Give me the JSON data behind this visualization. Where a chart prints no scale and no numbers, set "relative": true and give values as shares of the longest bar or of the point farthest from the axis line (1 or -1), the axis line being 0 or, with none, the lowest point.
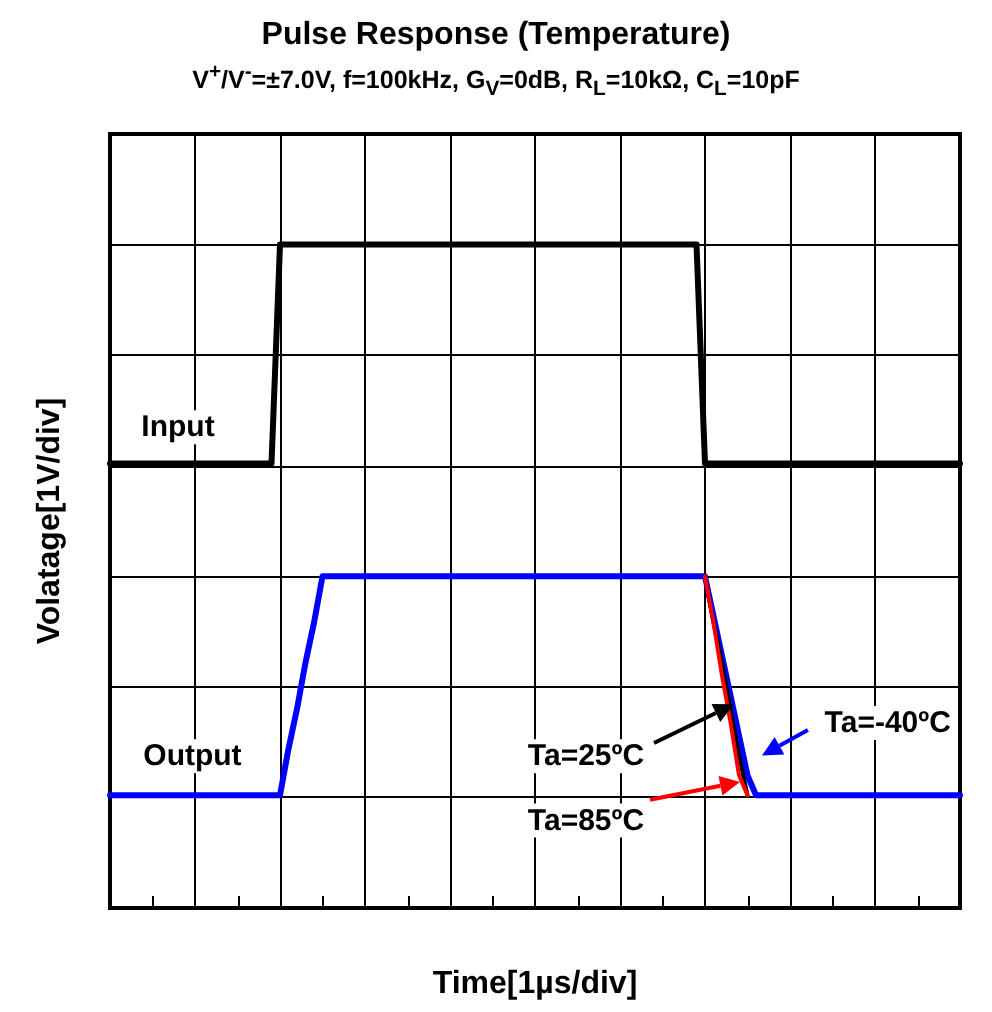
{
  "chart_data": {
    "type": "line",
    "title": "Pulse Response (Temperature)",
    "subtitle": "V$^{+}$/V$^{-}$=±7.0V, f=100kHz, G$_{V}$=0dB, R$_{L}$=10kΩ, C$_{L}$=10pF",
    "xlabel": "Time[1µs/div]",
    "ylabel": "Volatage[1V/div]",
    "relative": true,
    "grid": true,
    "marker": "none",
    "line_style": "solid",
    "categories": [
      null,
      null,
      null,
      null,
      null,
      null,
      null,
      null,
      null,
      null,
      null,
      null,
      null,
      null,
      null,
      null,
      null,
      null,
      null,
      null,
      null,
      null,
      null,
      null,
      null,
      null,
      null,
      null,
      null,
      null,
      null,
      null,
      null,
      null,
      null,
      null,
      null,
      null,
      null,
      null,
      null,
      null,
      null,
      null,
      null,
      null,
      null,
      null,
      null,
      null,
      null,
      null,
      null,
      null,
      null,
      null,
      null,
      null,
      null,
      null,
      null,
      null,
      null,
      null,
      null,
      null,
      null,
      null,
      null,
      null,
      null,
      null,
      null,
      null,
      null,
      null,
      null,
      null,
      null,
      null,
      null,
      null,
      null,
      null,
      null,
      null,
      null,
      null,
      null,
      null,
      null,
      null,
      null,
      null,
      null,
      null,
      null,
      null,
      null,
      null,
      null
    ],
    "series": [
      {
        "name": "Input",
        "color": "#000000",
        "values": [
          0.67,
          0.67,
          0.67,
          0.67,
          0.67,
          0.67,
          0.67,
          0.67,
          0.67,
          0.67,
          0.67,
          0.67,
          0.67,
          0.67,
          0.67,
          0.67,
          0.67,
          0.67,
          0.67,
          0.67,
          1,
          1,
          1,
          1,
          1,
          1,
          1,
          1,
          1,
          1,
          1,
          1,
          1,
          1,
          1,
          1,
          1,
          1,
          1,
          1,
          1,
          1,
          1,
          1,
          1,
          1,
          1,
          1,
          1,
          1,
          1,
          1,
          1,
          1,
          1,
          1,
          1,
          1,
          1,
          1,
          1,
          1,
          1,
          1,
          1,
          1,
          1,
          1,
          1,
          1,
          0.67,
          0.67,
          0.67,
          0.67,
          0.67,
          0.67,
          0.67,
          0.67,
          0.67,
          0.67,
          0.67,
          0.67,
          0.67,
          0.67,
          0.67,
          0.67,
          0.67,
          0.67,
          0.67,
          0.67,
          0.67,
          0.67,
          0.67,
          0.67,
          0.67,
          0.67,
          0.67,
          0.67,
          0.67,
          0.67,
          0.67
        ]
      },
      {
        "name": "Ta=85ºC",
        "color": "#ff0000",
        "values": [
          null,
          null,
          null,
          null,
          null,
          null,
          null,
          null,
          null,
          null,
          null,
          null,
          null,
          null,
          null,
          null,
          null,
          null,
          null,
          null,
          null,
          null,
          null,
          null,
          null,
          null,
          null,
          null,
          null,
          null,
          null,
          null,
          null,
          null,
          null,
          null,
          null,
          null,
          null,
          null,
          null,
          null,
          null,
          null,
          null,
          null,
          null,
          null,
          null,
          null,
          null,
          null,
          null,
          null,
          null,
          null,
          null,
          null,
          null,
          null,
          null,
          null,
          null,
          null,
          null,
          null,
          null,
          null,
          null,
          null,
          0.5,
          0.43,
          0.35,
          0.28,
          0.2,
          0.17,
          null,
          null,
          null,
          null,
          null,
          null,
          null,
          null,
          null,
          null,
          null,
          null,
          null,
          null,
          null,
          null,
          null,
          null,
          null,
          null,
          null,
          null,
          null,
          null,
          null
        ]
      },
      {
        "name": "Ta=25ºC",
        "color": "#000000",
        "values": [
          null,
          null,
          null,
          null,
          null,
          null,
          null,
          null,
          null,
          null,
          null,
          null,
          null,
          null,
          null,
          null,
          null,
          null,
          null,
          null,
          null,
          null,
          null,
          null,
          null,
          null,
          null,
          null,
          null,
          null,
          null,
          null,
          null,
          null,
          null,
          null,
          null,
          null,
          null,
          null,
          null,
          null,
          null,
          null,
          null,
          null,
          null,
          null,
          null,
          null,
          null,
          null,
          null,
          null,
          null,
          null,
          null,
          null,
          null,
          null,
          null,
          null,
          null,
          null,
          null,
          null,
          null,
          null,
          null,
          null,
          0.5,
          0.43,
          0.37,
          0.3,
          0.23,
          0.17,
          null,
          null,
          null,
          null,
          null,
          null,
          null,
          null,
          null,
          null,
          null,
          null,
          null,
          null,
          null,
          null,
          null,
          null,
          null,
          null,
          null,
          null,
          null,
          null,
          null
        ]
      },
      {
        "name": "Ta=-40ºC",
        "color": "#0000ff",
        "values": [
          0.17,
          0.17,
          0.17,
          0.17,
          0.17,
          0.17,
          0.17,
          0.17,
          0.17,
          0.17,
          0.17,
          0.17,
          0.17,
          0.17,
          0.17,
          0.17,
          0.17,
          0.17,
          0.17,
          0.17,
          0.17,
          0.24,
          0.3,
          0.37,
          0.43,
          0.5,
          0.5,
          0.5,
          0.5,
          0.5,
          0.5,
          0.5,
          0.5,
          0.5,
          0.5,
          0.5,
          0.5,
          0.5,
          0.5,
          0.5,
          0.5,
          0.5,
          0.5,
          0.5,
          0.5,
          0.5,
          0.5,
          0.5,
          0.5,
          0.5,
          0.5,
          0.5,
          0.5,
          0.5,
          0.5,
          0.5,
          0.5,
          0.5,
          0.5,
          0.5,
          0.5,
          0.5,
          0.5,
          0.5,
          0.5,
          0.5,
          0.5,
          0.5,
          0.5,
          0.5,
          0.5,
          0.44,
          0.38,
          0.32,
          0.26,
          0.2,
          0.17,
          0.17,
          0.17,
          0.17,
          0.17,
          0.17,
          0.17,
          0.17,
          0.17,
          0.17,
          0.17,
          0.17,
          0.17,
          0.17,
          0.17,
          0.17,
          0.17,
          0.17,
          0.17,
          0.17,
          0.17,
          0.17,
          0.17,
          0.17,
          0.17
        ]
      }
    ],
    "annotations": [
      "Output"
    ]
  }
}
